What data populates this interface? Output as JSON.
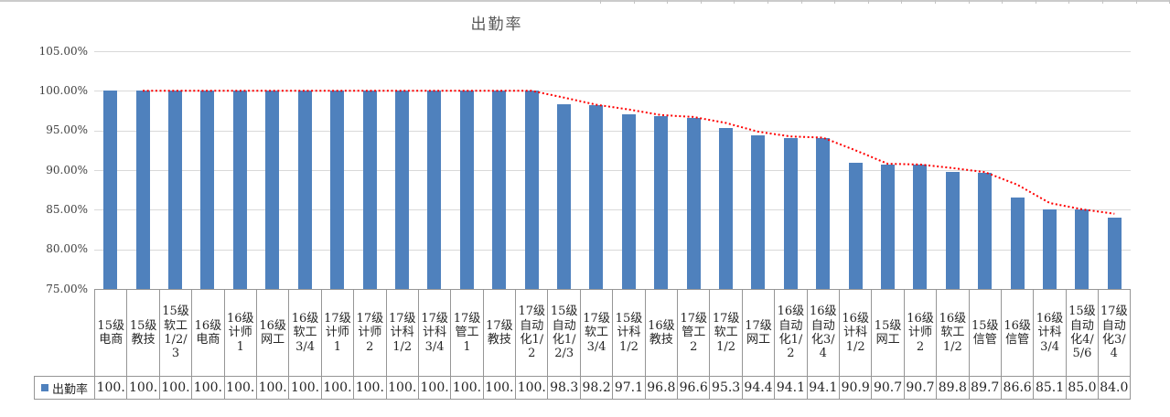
{
  "chart_data": {
    "type": "bar",
    "title": "出勤率",
    "categories": [
      "15级电商",
      "15级教技",
      "15级软工1/2/3",
      "16级电商",
      "16级计师1",
      "16级网工",
      "16级软工3/4",
      "17级计师1",
      "17级计师2",
      "17级计科1/2",
      "17级计科3/4",
      "17级管工1",
      "17级教技",
      "17级自动化1/2",
      "15级自动化1/2/3",
      "17级软工3/4",
      "15级计科1/2",
      "16级教技",
      "17级管工2",
      "17级软工1/2",
      "17级网工",
      "16级自动化1/2",
      "16级自动化3/4",
      "16级计科1/2",
      "15级网工",
      "16级计师2",
      "16级软工1/2",
      "15级信管",
      "16级信管",
      "16级计科3/4",
      "15级自动化4/5/6",
      "17级自动化3/4"
    ],
    "series": [
      {
        "name": "出勤率",
        "values": [
          100.0,
          100.0,
          100.0,
          100.0,
          100.0,
          100.0,
          100.0,
          100.0,
          100.0,
          100.0,
          100.0,
          100.0,
          100.0,
          100.0,
          98.3,
          98.2,
          97.1,
          96.8,
          96.6,
          95.3,
          94.4,
          94.1,
          94.1,
          90.9,
          90.7,
          90.7,
          89.8,
          89.7,
          86.6,
          85.1,
          85.0,
          84.0
        ]
      }
    ],
    "displayed_values": [
      "100.",
      "100.",
      "100.",
      "100.",
      "100.",
      "100.",
      "100.",
      "100.",
      "100.",
      "100.",
      "100.",
      "100.",
      "100.",
      "100.",
      "98.3",
      "98.2",
      "97.1",
      "96.8",
      "96.6",
      "95.3",
      "94.4",
      "94.1",
      "94.1",
      "90.9",
      "90.7",
      "90.7",
      "89.8",
      "89.7",
      "86.6",
      "85.1",
      "85.0",
      "84.0"
    ],
    "ytick_labels": [
      "105.00%",
      "100.00%",
      "95.00%",
      "90.00%",
      "85.00%",
      "80.00%",
      "75.00%"
    ],
    "ylim_percent": [
      75,
      105
    ],
    "grid": "horizontal",
    "bar_color": "#4F81BD",
    "gridline_color": "#D9D9D9",
    "trendline": {
      "type": "moving_average",
      "period": 2,
      "color": "#FF0000",
      "style": "dotted"
    },
    "legend_position": "table-left"
  },
  "table": {
    "legend_label": "出勤率",
    "legend_marker_color": "#4F81BD"
  }
}
